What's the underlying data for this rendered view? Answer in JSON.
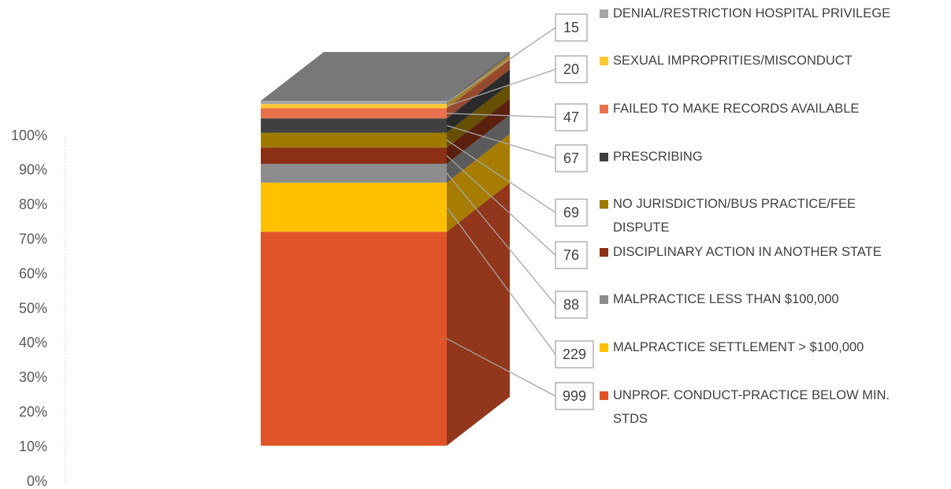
{
  "chart_data": {
    "type": "bar",
    "stacking": "percent",
    "series": [
      {
        "name": "UNPROF. CONDUCT-PRACTICE BELOW MIN. STDS",
        "color": "#e0542a",
        "values": [
          999
        ]
      },
      {
        "name": "MALPRACTICE SETTLEMENT > $100,000",
        "color": "#ffc000",
        "values": [
          229
        ]
      },
      {
        "name": "MALPRACTICE LESS THAN $100,000",
        "color": "#8c8c8c",
        "values": [
          88
        ]
      },
      {
        "name": "DISCIPLINARY ACTION IN ANOTHER STATE",
        "color": "#8b3014",
        "values": [
          76
        ]
      },
      {
        "name": "NO JURISDICTION/BUS PRACTICE/FEE DISPUTE",
        "color": "#9e7a00",
        "values": [
          69
        ]
      },
      {
        "name": "PRESCRIBING",
        "color": "#404040",
        "values": [
          67
        ]
      },
      {
        "name": "FAILED TO MAKE RECORDS AVAILABLE",
        "color": "#e8704a",
        "values": [
          47
        ]
      },
      {
        "name": "SEXUAL IMPROPRITIES/MISCONDUCT",
        "color": "#ffc935",
        "values": [
          20
        ]
      },
      {
        "name": "DENIAL/RESTRICTION  HOSPITAL PRIVILEGE",
        "color": "#a5a5a5",
        "values": [
          15
        ]
      }
    ],
    "ylim": [
      0,
      100
    ],
    "yticks": [
      {
        "value": 0,
        "label": "0%"
      },
      {
        "value": 10,
        "label": "10%"
      },
      {
        "value": 20,
        "label": "20%"
      },
      {
        "value": 30,
        "label": "30%"
      },
      {
        "value": 40,
        "label": "40%"
      },
      {
        "value": 50,
        "label": "50%"
      },
      {
        "value": 60,
        "label": "60%"
      },
      {
        "value": 70,
        "label": "70%"
      },
      {
        "value": 80,
        "label": "80%"
      },
      {
        "value": 90,
        "label": "90%"
      },
      {
        "value": 100,
        "label": "100%"
      }
    ],
    "legend": "right"
  }
}
